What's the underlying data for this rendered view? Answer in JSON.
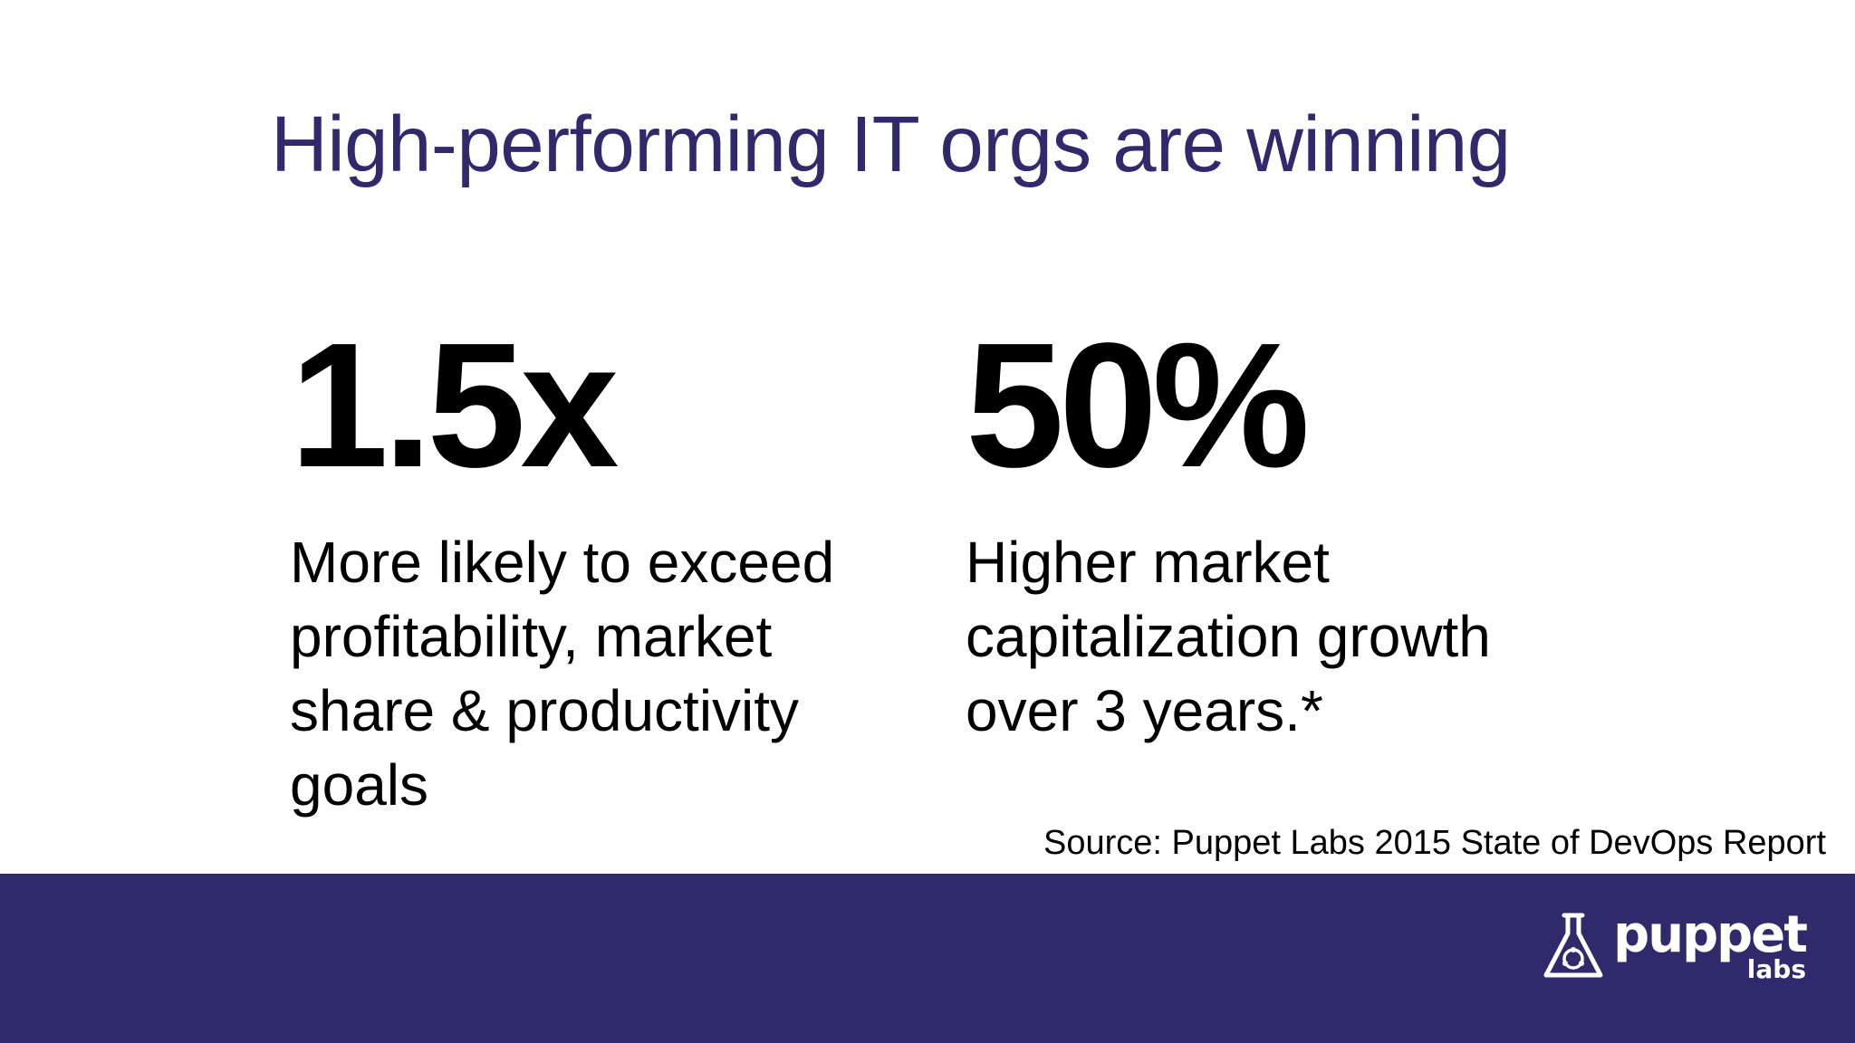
{
  "slide": {
    "title": "High-performing IT orgs are winning",
    "stats": [
      {
        "value": "1.5x",
        "description": "More likely to exceed\nprofitability, market\nshare & productivity\ngoals"
      },
      {
        "value": "50%",
        "description": "Higher market\ncapitalization growth\nover 3 years.*"
      }
    ],
    "source": "Source: Puppet Labs 2015 State of DevOps Report"
  },
  "footer": {
    "logo_word": "puppet",
    "logo_sub": "labs",
    "logo_icon": "flask-icon"
  },
  "colors": {
    "title": "#30296b",
    "footer_bar": "#2f2a6b",
    "text": "#000000",
    "background": "#ffffff"
  }
}
